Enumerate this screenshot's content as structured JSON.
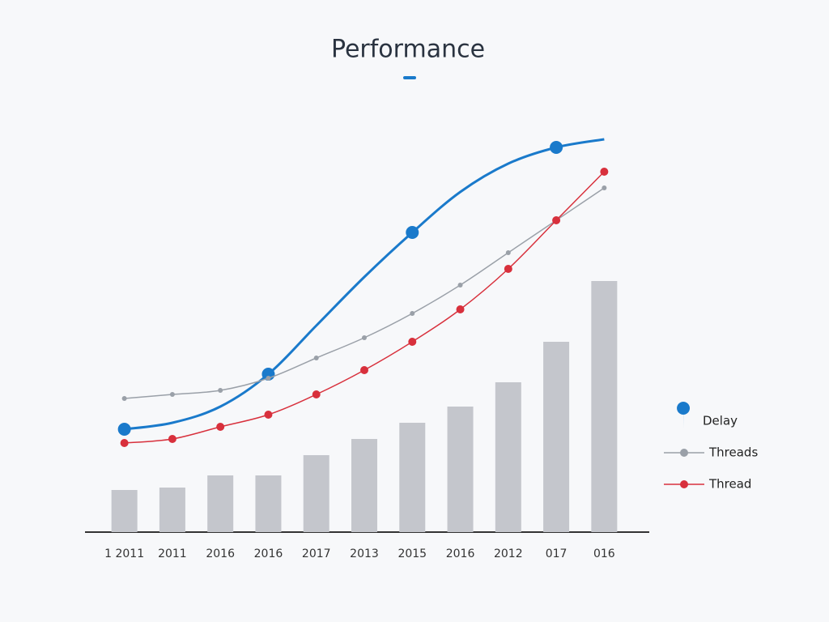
{
  "chart_data": {
    "type": "bar",
    "title": "Performance",
    "categories": [
      "1 2011",
      "2011",
      "2016",
      "2016",
      "2017",
      "2013",
      "2015",
      "2016",
      "2012",
      "017",
      "016"
    ],
    "values": [
      10.4,
      11,
      14,
      14,
      19,
      23,
      27,
      31,
      37,
      47,
      62
    ],
    "color": "#c4c6cc",
    "ylim": [
      0,
      100
    ],
    "series": [
      {
        "name": "Delay",
        "color": "#1a7acb",
        "values": [
          25.4,
          27,
          31,
          39,
          51,
          63,
          74,
          84,
          91,
          95,
          97
        ]
      },
      {
        "name": "Threads",
        "color": "#9aa0a8",
        "values": [
          33,
          34,
          35,
          38,
          43,
          48,
          54,
          61,
          69,
          77,
          85
        ]
      },
      {
        "name": "Thread",
        "color": "#d8303c",
        "values": [
          22,
          23,
          26,
          29,
          34,
          40,
          47,
          55,
          65,
          77,
          89
        ]
      }
    ]
  }
}
